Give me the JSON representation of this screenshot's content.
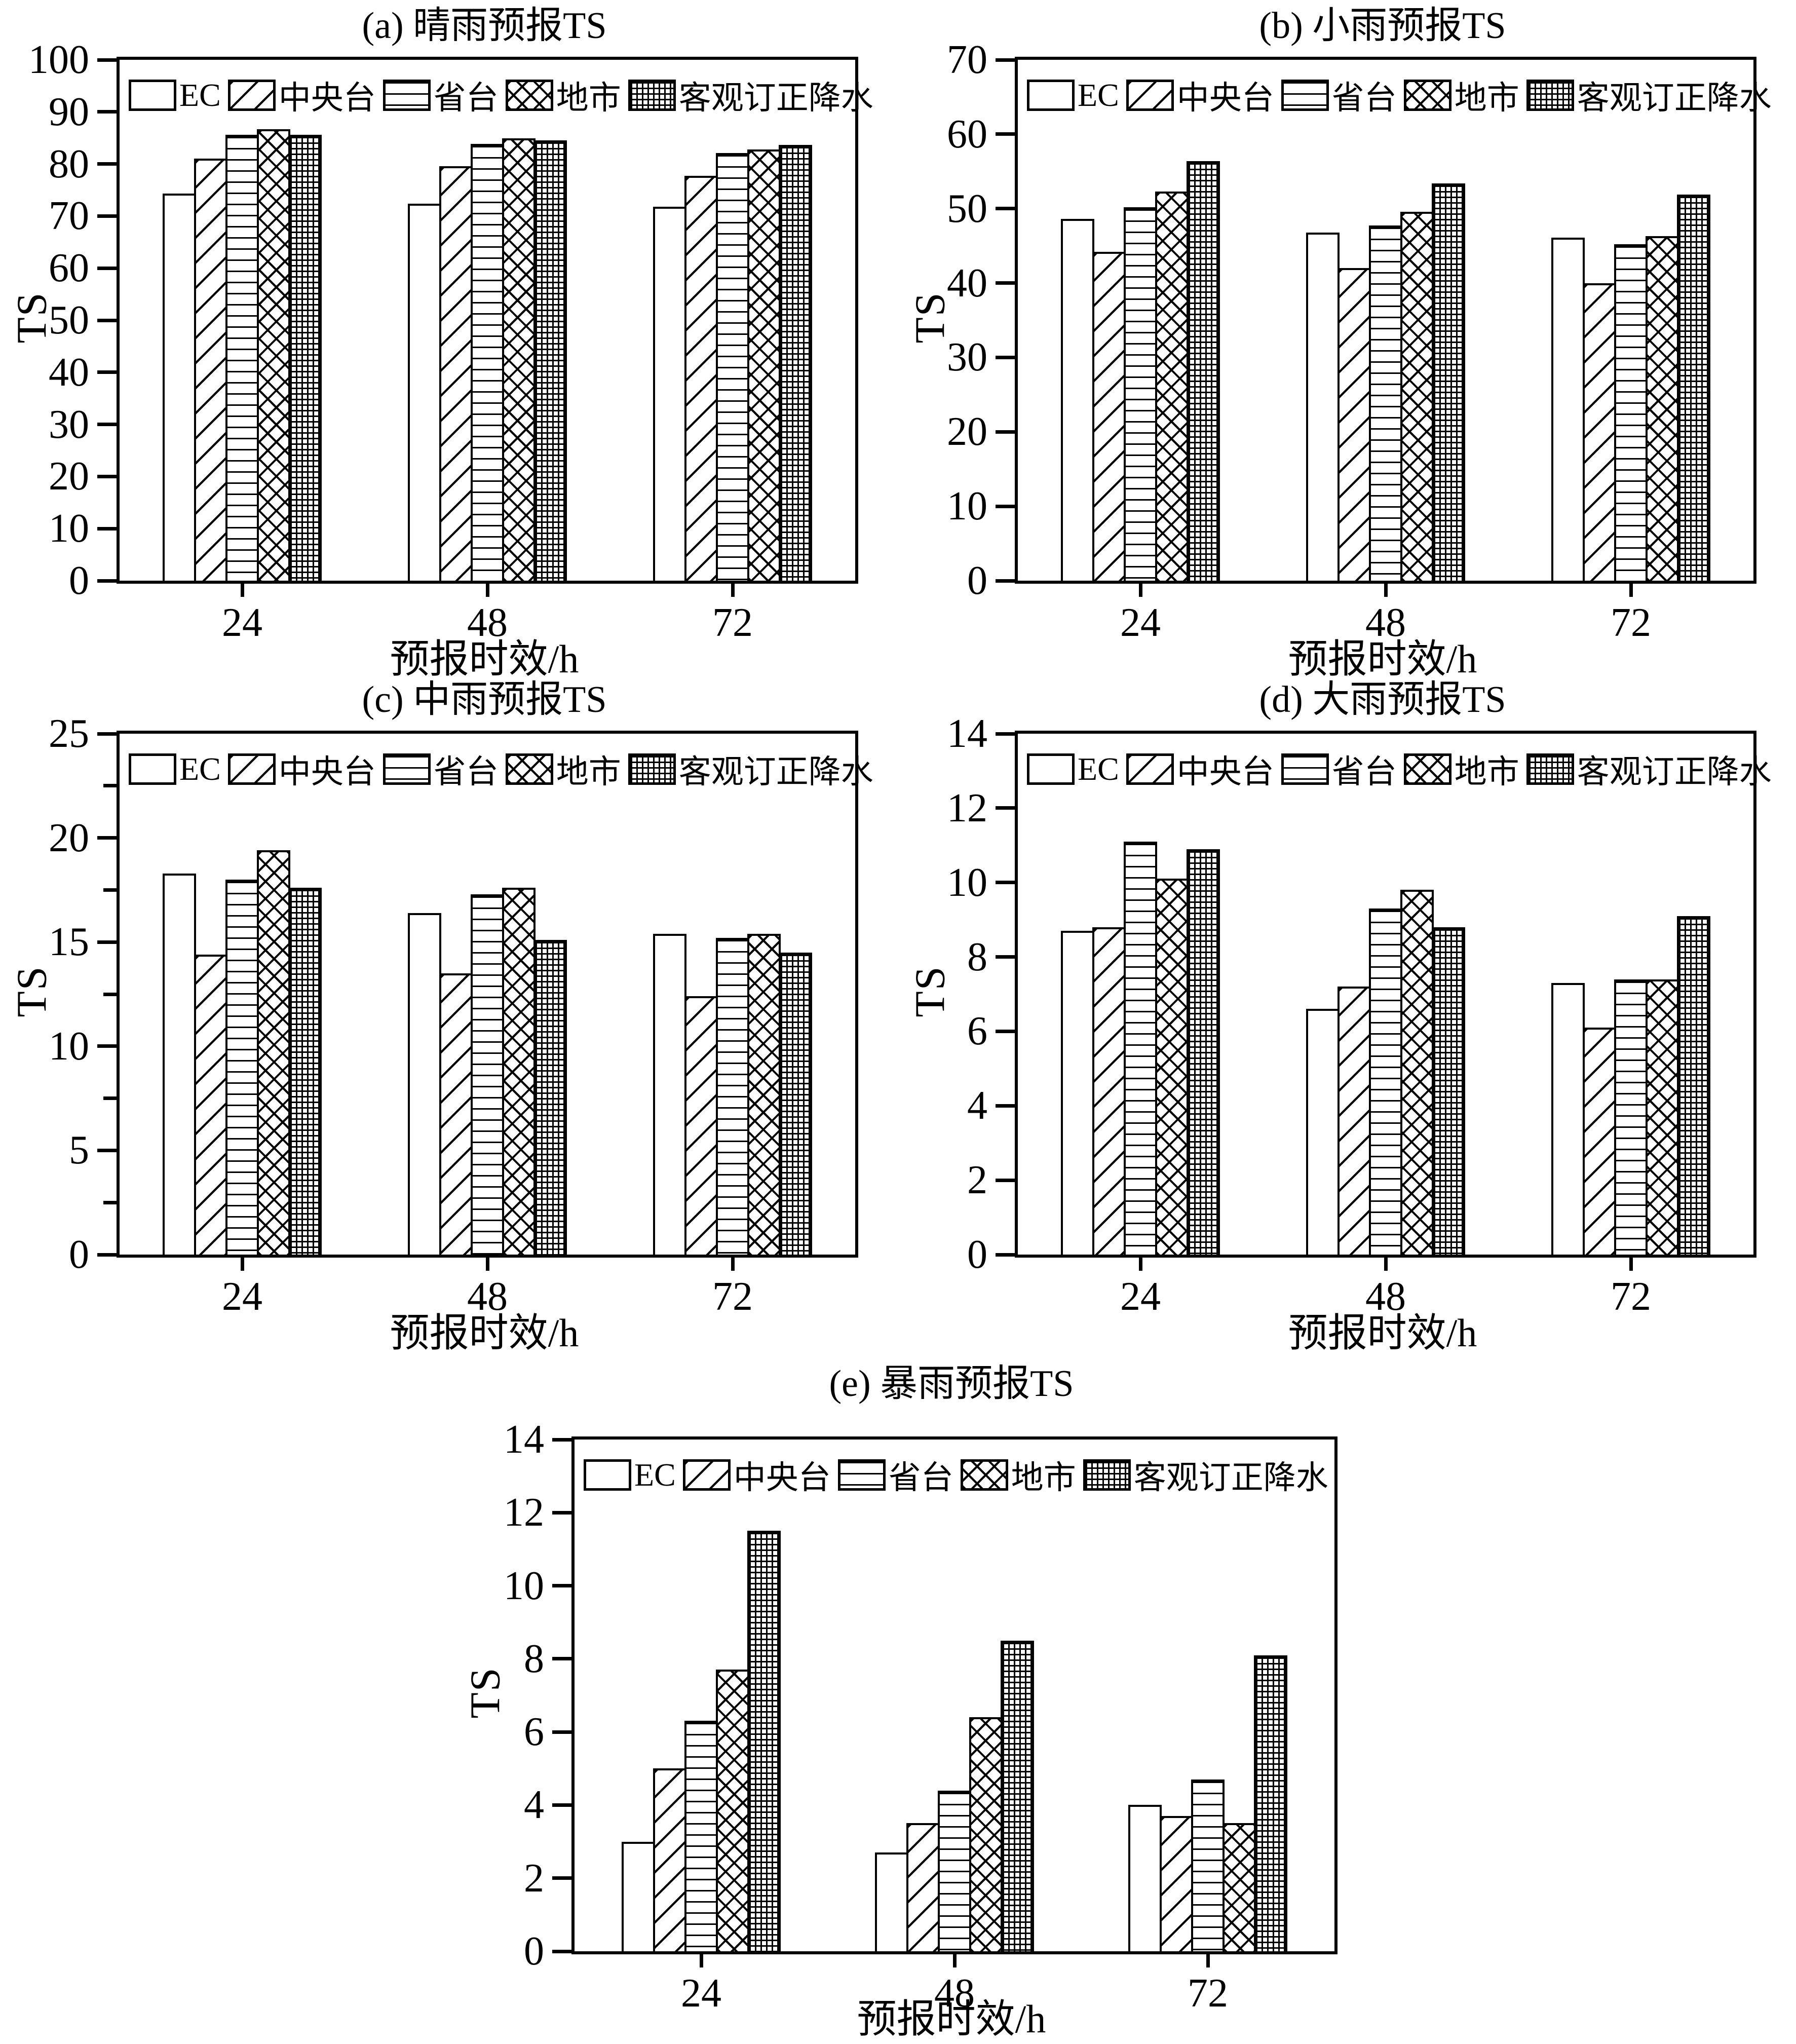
{
  "figure": {
    "background_color": "#ffffff",
    "ink_color": "#000000",
    "panel_count": 5
  },
  "chart_data": [
    {
      "id": "a",
      "type": "bar",
      "title": "(a) 晴雨预报TS",
      "xlabel": "预报时效/h",
      "ylabel": "TS",
      "categories": [
        "24",
        "48",
        "72"
      ],
      "ylim": [
        0,
        100
      ],
      "yticks": [
        0,
        10,
        20,
        30,
        40,
        50,
        60,
        70,
        80,
        90,
        100
      ],
      "minor_yticks": [],
      "grid": false,
      "legend_position": "top-inside",
      "series": [
        {
          "name": "EC",
          "pattern": "none",
          "values": [
            74.3,
            72.4,
            71.8
          ]
        },
        {
          "name": "中央台",
          "pattern": "diagonal",
          "values": [
            81.0,
            79.6,
            77.7
          ]
        },
        {
          "name": "省台",
          "pattern": "hlines",
          "values": [
            85.6,
            83.9,
            82.1
          ]
        },
        {
          "name": "地市",
          "pattern": "crosshatch",
          "values": [
            86.7,
            84.9,
            82.8
          ]
        },
        {
          "name": "客观订正降水",
          "pattern": "grid",
          "values": [
            85.6,
            84.5,
            83.7
          ]
        }
      ]
    },
    {
      "id": "b",
      "type": "bar",
      "title": "(b) 小雨预报TS",
      "xlabel": "预报时效/h",
      "ylabel": "TS",
      "categories": [
        "24",
        "48",
        "72"
      ],
      "ylim": [
        0,
        70
      ],
      "yticks": [
        0,
        10,
        20,
        30,
        40,
        50,
        60,
        70
      ],
      "minor_yticks": [],
      "grid": false,
      "legend_position": "top-inside",
      "series": [
        {
          "name": "EC",
          "pattern": "none",
          "values": [
            48.6,
            46.8,
            46.1
          ]
        },
        {
          "name": "中央台",
          "pattern": "diagonal",
          "values": [
            44.2,
            42.0,
            40.0
          ]
        },
        {
          "name": "省台",
          "pattern": "hlines",
          "values": [
            50.2,
            47.7,
            45.2
          ]
        },
        {
          "name": "地市",
          "pattern": "crosshatch",
          "values": [
            52.3,
            49.6,
            46.3
          ]
        },
        {
          "name": "客观订正降水",
          "pattern": "grid",
          "values": [
            56.4,
            53.4,
            51.9
          ]
        }
      ]
    },
    {
      "id": "c",
      "type": "bar",
      "title": "(c) 中雨预报TS",
      "xlabel": "预报时效/h",
      "ylabel": "TS",
      "categories": [
        "24",
        "48",
        "72"
      ],
      "ylim": [
        0,
        25
      ],
      "yticks": [
        0,
        5,
        10,
        15,
        20,
        25
      ],
      "minor_yticks": [
        2.5,
        7.5,
        12.5,
        17.5,
        22.5
      ],
      "grid": false,
      "legend_position": "top-inside",
      "series": [
        {
          "name": "EC",
          "pattern": "none",
          "values": [
            18.3,
            16.4,
            15.4
          ]
        },
        {
          "name": "中央台",
          "pattern": "diagonal",
          "values": [
            14.4,
            13.5,
            12.4
          ]
        },
        {
          "name": "省台",
          "pattern": "hlines",
          "values": [
            18.0,
            17.3,
            15.2
          ]
        },
        {
          "name": "地市",
          "pattern": "crosshatch",
          "values": [
            19.4,
            17.6,
            15.4
          ]
        },
        {
          "name": "客观订正降水",
          "pattern": "grid",
          "values": [
            17.6,
            15.1,
            14.5
          ]
        }
      ]
    },
    {
      "id": "d",
      "type": "bar",
      "title": "(d) 大雨预报TS",
      "xlabel": "预报时效/h",
      "ylabel": "TS",
      "categories": [
        "24",
        "48",
        "72"
      ],
      "ylim": [
        0,
        14
      ],
      "yticks": [
        0,
        2,
        4,
        6,
        8,
        10,
        12,
        14
      ],
      "minor_yticks": [],
      "grid": false,
      "legend_position": "top-inside",
      "series": [
        {
          "name": "EC",
          "pattern": "none",
          "values": [
            8.7,
            6.6,
            7.3
          ]
        },
        {
          "name": "中央台",
          "pattern": "diagonal",
          "values": [
            8.8,
            7.2,
            6.1
          ]
        },
        {
          "name": "省台",
          "pattern": "hlines",
          "values": [
            11.1,
            9.3,
            7.4
          ]
        },
        {
          "name": "地市",
          "pattern": "crosshatch",
          "values": [
            10.1,
            9.8,
            7.4
          ]
        },
        {
          "name": "客观订正降水",
          "pattern": "grid",
          "values": [
            10.9,
            8.8,
            9.1
          ]
        }
      ]
    },
    {
      "id": "e",
      "type": "bar",
      "title": "(e) 暴雨预报TS",
      "xlabel": "预报时效/h",
      "ylabel": "TS",
      "categories": [
        "24",
        "48",
        "72"
      ],
      "ylim": [
        0,
        14
      ],
      "yticks": [
        0,
        2,
        4,
        6,
        8,
        10,
        12,
        14
      ],
      "minor_yticks": [],
      "grid": false,
      "legend_position": "top-inside",
      "series": [
        {
          "name": "EC",
          "pattern": "none",
          "values": [
            3.0,
            2.7,
            4.0
          ]
        },
        {
          "name": "中央台",
          "pattern": "diagonal",
          "values": [
            5.0,
            3.5,
            3.7
          ]
        },
        {
          "name": "省台",
          "pattern": "hlines",
          "values": [
            6.3,
            4.4,
            4.7
          ]
        },
        {
          "name": "地市",
          "pattern": "crosshatch",
          "values": [
            7.7,
            6.4,
            3.5
          ]
        },
        {
          "name": "客观订正降水",
          "pattern": "grid",
          "values": [
            11.5,
            8.5,
            8.1
          ]
        }
      ]
    }
  ]
}
